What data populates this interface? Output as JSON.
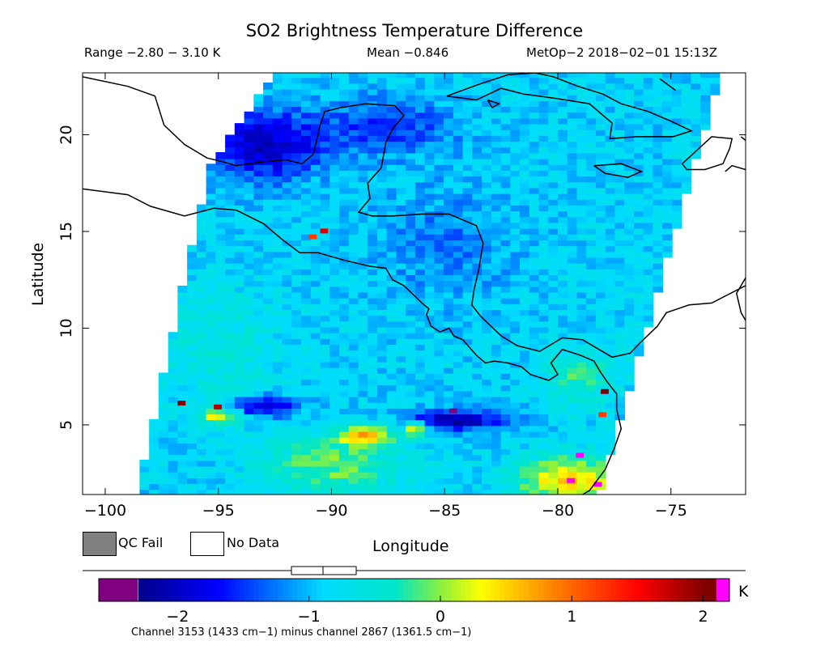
{
  "chart_data": {
    "type": "heatmap",
    "title": "SO2 Brightness Temperature Difference",
    "range_text": "Range −2.80 − 3.10 K",
    "mean_text": "Mean −0.846",
    "satellite_text": "MetOp−2 2018−02−01 15:13Z",
    "xlabel": "Longitude",
    "ylabel": "Latitude",
    "xlim": [
      -101,
      -71.7
    ],
    "ylim": [
      1.4,
      23.2
    ],
    "x_ticks": [
      -100,
      -95,
      -90,
      -85,
      -80,
      -75
    ],
    "x_tick_labels": [
      "−100",
      "−95",
      "−90",
      "−85",
      "−80",
      "−75"
    ],
    "y_ticks": [
      5,
      10,
      15,
      20
    ],
    "y_tick_labels": [
      "5",
      "10",
      "15",
      "20"
    ],
    "legend": [
      {
        "label": "QC Fail",
        "color": "#808080"
      },
      {
        "label": "No Data",
        "color": "#ffffff"
      }
    ],
    "colorbar": {
      "min": -2.6,
      "max": 2.2,
      "ticks": [
        -2,
        -1,
        0,
        1,
        2
      ],
      "tick_labels": [
        "−2",
        "−1",
        "0",
        "1",
        "2"
      ],
      "unit": "K",
      "low_color": "#800080",
      "high_color": "#ff00ff",
      "caption": "Channel 3153 (1433 cm−1) minus channel 2867 (1361.5 cm−1)"
    },
    "swath": {
      "corners": [
        [
          -98.6,
          1.4
        ],
        [
          -95.4,
          18.4
        ],
        [
          -92.5,
          23.2
        ],
        [
          -72.8,
          23.2
        ],
        [
          -78.2,
          1.4
        ]
      ]
    },
    "field": {
      "base": -0.9,
      "features": [
        {
          "lon": -93,
          "lat": 19.5,
          "value": -2.1,
          "sx": 2.6,
          "sy": 1.8
        },
        {
          "lon": -87.5,
          "lat": 20.5,
          "value": -1.6,
          "sx": 3.0,
          "sy": 1.5
        },
        {
          "lon": -85,
          "lat": 14.5,
          "value": -1.3,
          "sx": 3.0,
          "sy": 3.0
        },
        {
          "lon": -93,
          "lat": 6,
          "value": -2.2,
          "sx": 1.4,
          "sy": 0.5
        },
        {
          "lon": -84.5,
          "lat": 5.3,
          "value": -2.3,
          "sx": 2.2,
          "sy": 0.5
        },
        {
          "lon": -88.5,
          "lat": 4.5,
          "value": 0.6,
          "sx": 1.2,
          "sy": 0.5
        },
        {
          "lon": -86.3,
          "lat": 4.8,
          "value": 0.6,
          "sx": 0.5,
          "sy": 0.4
        },
        {
          "lon": -95,
          "lat": 5.5,
          "value": 0.3,
          "sx": 1.0,
          "sy": 0.4
        },
        {
          "lon": -79.5,
          "lat": 2.2,
          "value": 0.7,
          "sx": 2.2,
          "sy": 1.2
        },
        {
          "lon": -90,
          "lat": 3,
          "value": 0.0,
          "sx": 3.0,
          "sy": 1.5
        },
        {
          "lon": -95,
          "lat": 9,
          "value": -0.5,
          "sx": 2.5,
          "sy": 3.0
        },
        {
          "lon": -79,
          "lat": 7.5,
          "value": -0.2,
          "sx": 1.5,
          "sy": 1.5
        }
      ],
      "hot_pixels": [
        {
          "lon": -91,
          "lat": 14.6,
          "value": 1.2
        },
        {
          "lon": -90.5,
          "lat": 14.9,
          "value": 1.6
        },
        {
          "lon": -96.8,
          "lat": 6.0,
          "value": 2.0
        },
        {
          "lon": -95.2,
          "lat": 5.8,
          "value": 1.8
        },
        {
          "lon": -78.1,
          "lat": 6.6,
          "value": 2.1
        },
        {
          "lon": -78.2,
          "lat": 5.4,
          "value": 1.2
        },
        {
          "lon": -79.2,
          "lat": 3.3,
          "value": 2.4
        },
        {
          "lon": -79.6,
          "lat": 2.0,
          "value": 2.4
        },
        {
          "lon": -78.4,
          "lat": 1.8,
          "value": 2.4
        },
        {
          "lon": -84.8,
          "lat": 5.6,
          "value": -2.6
        }
      ]
    },
    "coastlines": [
      [
        [
          -101,
          23
        ],
        [
          -99,
          22.5
        ],
        [
          -97.8,
          22
        ],
        [
          -97.4,
          20.5
        ],
        [
          -96.5,
          19.5
        ],
        [
          -95.5,
          18.8
        ],
        [
          -94.8,
          18.6
        ],
        [
          -94.2,
          18.4
        ],
        [
          -93,
          18.6
        ],
        [
          -92,
          18.7
        ],
        [
          -91.3,
          18.5
        ],
        [
          -90.8,
          19
        ],
        [
          -90.5,
          20.5
        ],
        [
          -90.3,
          21.2
        ],
        [
          -89.6,
          21.4
        ],
        [
          -88.5,
          21.6
        ],
        [
          -87.2,
          21.5
        ],
        [
          -86.8,
          21
        ],
        [
          -87.3,
          20.3
        ],
        [
          -87.6,
          19.6
        ],
        [
          -87.8,
          18.3
        ],
        [
          -88.4,
          17.5
        ],
        [
          -88.3,
          16.7
        ],
        [
          -88.8,
          16
        ],
        [
          -88.2,
          15.8
        ],
        [
          -87.3,
          15.8
        ],
        [
          -86,
          15.9
        ],
        [
          -84.8,
          15.9
        ],
        [
          -83.6,
          15.3
        ],
        [
          -83.3,
          14.4
        ],
        [
          -83.5,
          13
        ],
        [
          -83.7,
          12
        ],
        [
          -83.8,
          11.2
        ],
        [
          -83.4,
          10.6
        ],
        [
          -82.5,
          9.6
        ],
        [
          -81.8,
          9.1
        ],
        [
          -80.8,
          8.8
        ],
        [
          -79.8,
          9.5
        ],
        [
          -78.9,
          9.4
        ],
        [
          -77.6,
          8.5
        ],
        [
          -76.8,
          8.7
        ],
        [
          -76.4,
          9.2
        ],
        [
          -75.6,
          10.1
        ],
        [
          -75.2,
          10.8
        ],
        [
          -74.2,
          11.2
        ],
        [
          -73.2,
          11.3
        ],
        [
          -72.2,
          11.9
        ],
        [
          -71.7,
          12.2
        ]
      ],
      [
        [
          -101,
          17.2
        ],
        [
          -99,
          16.9
        ],
        [
          -98,
          16.3
        ],
        [
          -96.5,
          15.8
        ],
        [
          -95.2,
          16.2
        ],
        [
          -94.2,
          16.1
        ],
        [
          -93,
          15.4
        ],
        [
          -92.2,
          14.6
        ],
        [
          -91.4,
          13.9
        ],
        [
          -90.6,
          13.9
        ],
        [
          -89.4,
          13.5
        ],
        [
          -88.3,
          13.2
        ],
        [
          -87.6,
          13.1
        ],
        [
          -87.5,
          12.9
        ],
        [
          -87.3,
          12.5
        ],
        [
          -86.8,
          12.2
        ],
        [
          -86.0,
          11.3
        ],
        [
          -85.7,
          11.0
        ],
        [
          -85.8,
          10.7
        ],
        [
          -85.6,
          10.1
        ],
        [
          -85.2,
          9.8
        ],
        [
          -84.8,
          10.0
        ],
        [
          -84.6,
          9.6
        ],
        [
          -84.2,
          9.4
        ],
        [
          -83.6,
          8.6
        ],
        [
          -83.2,
          8.2
        ],
        [
          -82.8,
          8.3
        ],
        [
          -82.2,
          8.2
        ],
        [
          -81.6,
          8.0
        ],
        [
          -81.2,
          7.6
        ],
        [
          -80.4,
          7.3
        ],
        [
          -80.0,
          7.6
        ],
        [
          -80.3,
          8.2
        ],
        [
          -79.8,
          8.9
        ],
        [
          -79.0,
          8.6
        ],
        [
          -78.4,
          8.3
        ],
        [
          -78.1,
          7.7
        ],
        [
          -77.8,
          7.2
        ],
        [
          -77.4,
          6.6
        ],
        [
          -77.4,
          5.8
        ],
        [
          -77.2,
          4.8
        ],
        [
          -77.5,
          3.8
        ],
        [
          -77.9,
          2.7
        ],
        [
          -78.6,
          1.6
        ],
        [
          -78.9,
          1.4
        ]
      ],
      [
        [
          -84.9,
          22.0
        ],
        [
          -83.5,
          22.6
        ],
        [
          -82.2,
          23.1
        ],
        [
          -81.0,
          23.2
        ],
        [
          -80.2,
          23.0
        ],
        [
          -79.1,
          22.5
        ],
        [
          -78.0,
          22.1
        ],
        [
          -77.2,
          21.6
        ],
        [
          -76.0,
          21.2
        ],
        [
          -75.0,
          20.7
        ],
        [
          -74.1,
          20.2
        ],
        [
          -74.9,
          19.9
        ],
        [
          -76.5,
          19.9
        ],
        [
          -77.7,
          19.8
        ],
        [
          -77.6,
          20.6
        ],
        [
          -78.6,
          21.6
        ],
        [
          -80.2,
          21.9
        ],
        [
          -81.5,
          22.1
        ],
        [
          -82.5,
          22.4
        ],
        [
          -83.6,
          21.8
        ],
        [
          -84.9,
          22.0
        ]
      ],
      [
        [
          -83.1,
          21.8
        ],
        [
          -82.6,
          21.6
        ],
        [
          -82.9,
          21.4
        ],
        [
          -83.1,
          21.8
        ]
      ],
      [
        [
          -78.4,
          18.4
        ],
        [
          -77.2,
          18.5
        ],
        [
          -76.3,
          18.1
        ],
        [
          -76.9,
          17.8
        ],
        [
          -77.9,
          18.0
        ],
        [
          -78.4,
          18.4
        ]
      ],
      [
        [
          -74.5,
          18.5
        ],
        [
          -73.2,
          19.9
        ],
        [
          -72.3,
          19.8
        ],
        [
          -72.4,
          19.3
        ],
        [
          -72.7,
          18.5
        ],
        [
          -73.5,
          18.2
        ],
        [
          -74.3,
          18.2
        ],
        [
          -74.5,
          18.5
        ]
      ],
      [
        [
          -71.9,
          19.9
        ],
        [
          -71.7,
          19.7
        ]
      ],
      [
        [
          -71.7,
          18.2
        ],
        [
          -72.3,
          18.4
        ],
        [
          -72.6,
          18.1
        ]
      ],
      [
        [
          -71.7,
          12.6
        ],
        [
          -72.1,
          11.8
        ],
        [
          -71.9,
          10.8
        ],
        [
          -71.7,
          10.4
        ]
      ],
      [
        [
          -101,
          18
        ],
        [
          -101,
          18
        ]
      ],
      [
        [
          -75.5,
          22.9
        ],
        [
          -74.8,
          22.3
        ]
      ]
    ]
  }
}
